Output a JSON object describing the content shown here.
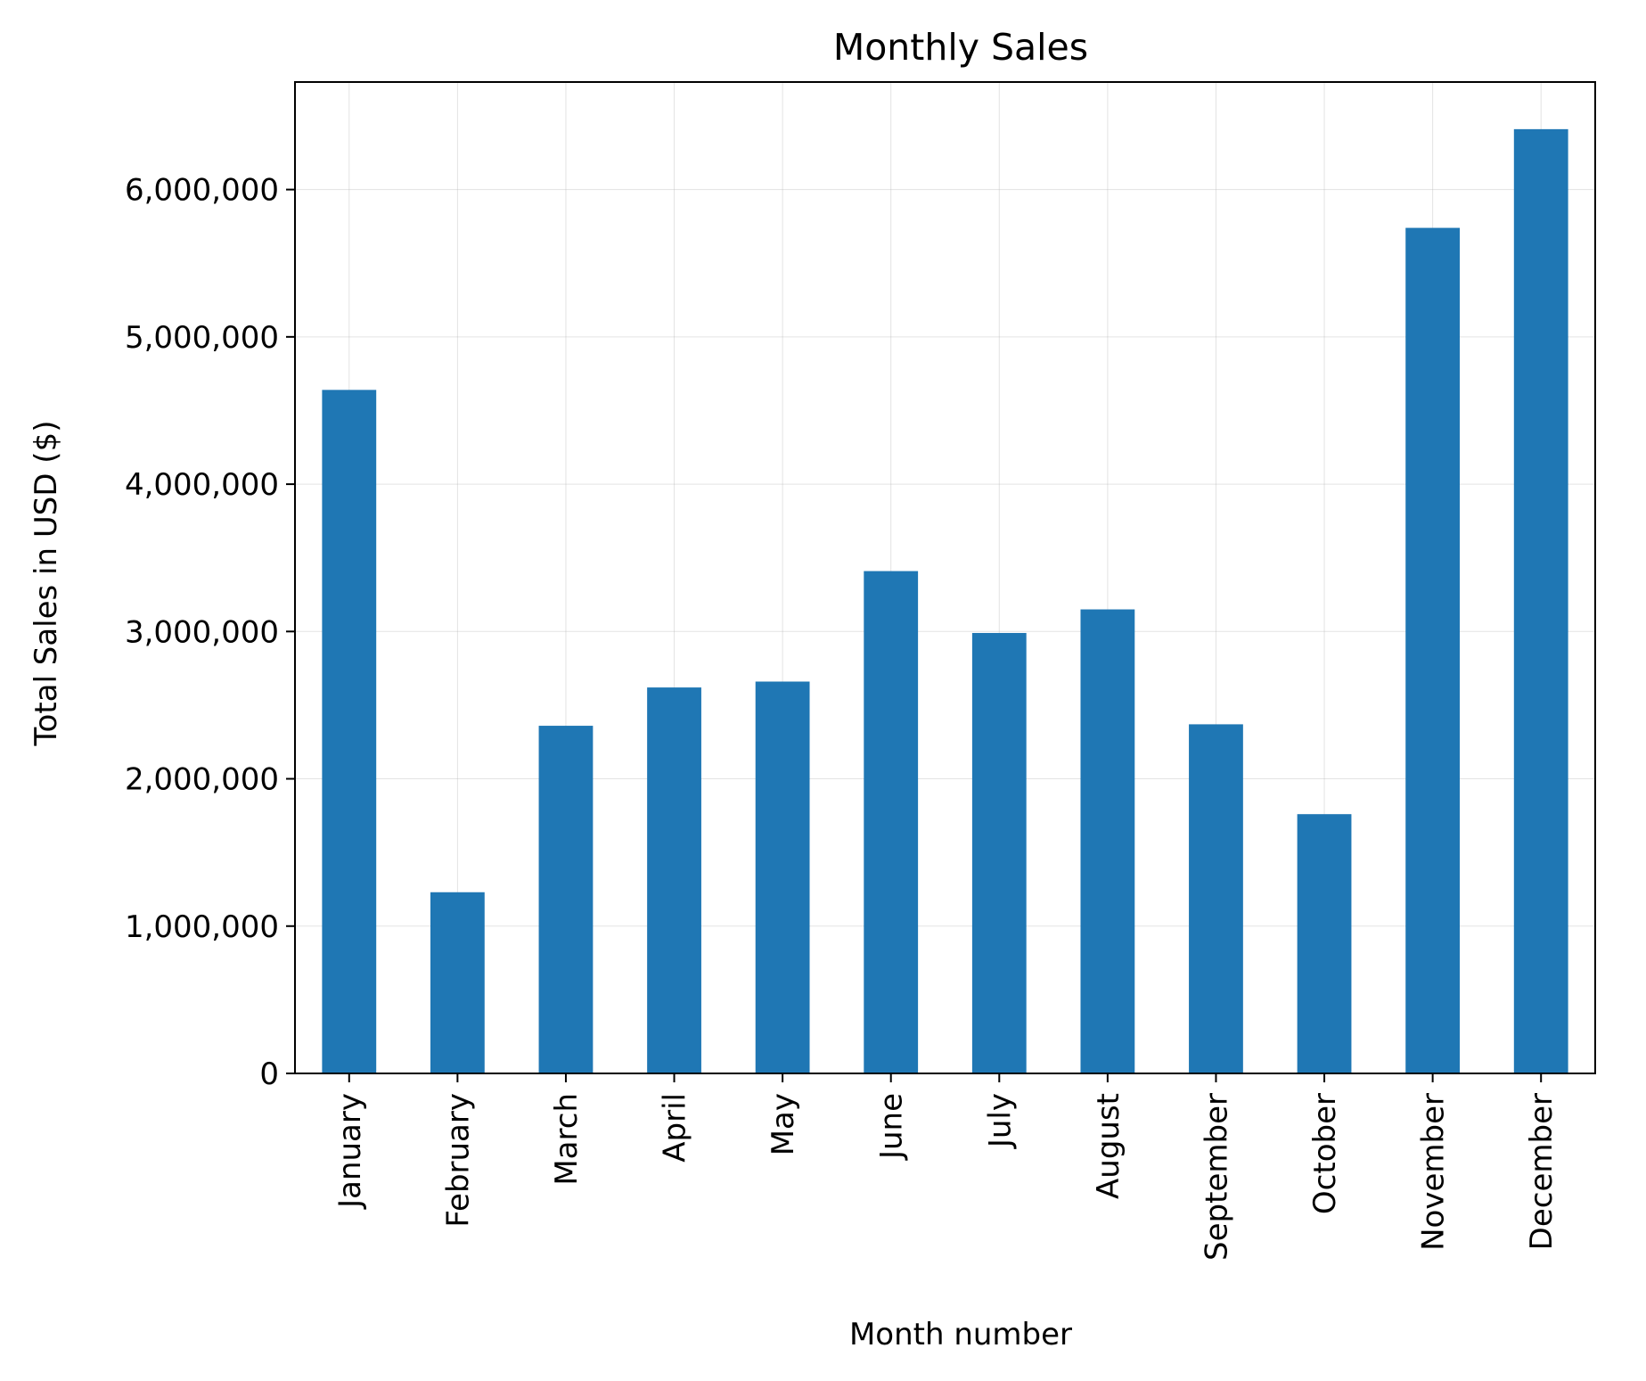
{
  "chart_data": {
    "type": "bar",
    "title": "Monthly Sales",
    "xlabel": "Month number",
    "ylabel": "Total Sales in USD ($)",
    "categories": [
      "January",
      "February",
      "March",
      "April",
      "May",
      "June",
      "July",
      "August",
      "September",
      "October",
      "November",
      "December"
    ],
    "values": [
      4640000,
      1230000,
      2360000,
      2620000,
      2660000,
      3410000,
      2990000,
      3150000,
      2370000,
      1760000,
      5740000,
      6410000
    ],
    "ylim": [
      0,
      6730000
    ],
    "yticks": [
      0,
      1000000,
      2000000,
      3000000,
      4000000,
      5000000,
      6000000
    ],
    "ytick_labels": [
      "0",
      "1,000,000",
      "2,000,000",
      "3,000,000",
      "4,000,000",
      "5,000,000",
      "6,000,000"
    ],
    "grid": true,
    "bar_color": "#1f77b4"
  }
}
